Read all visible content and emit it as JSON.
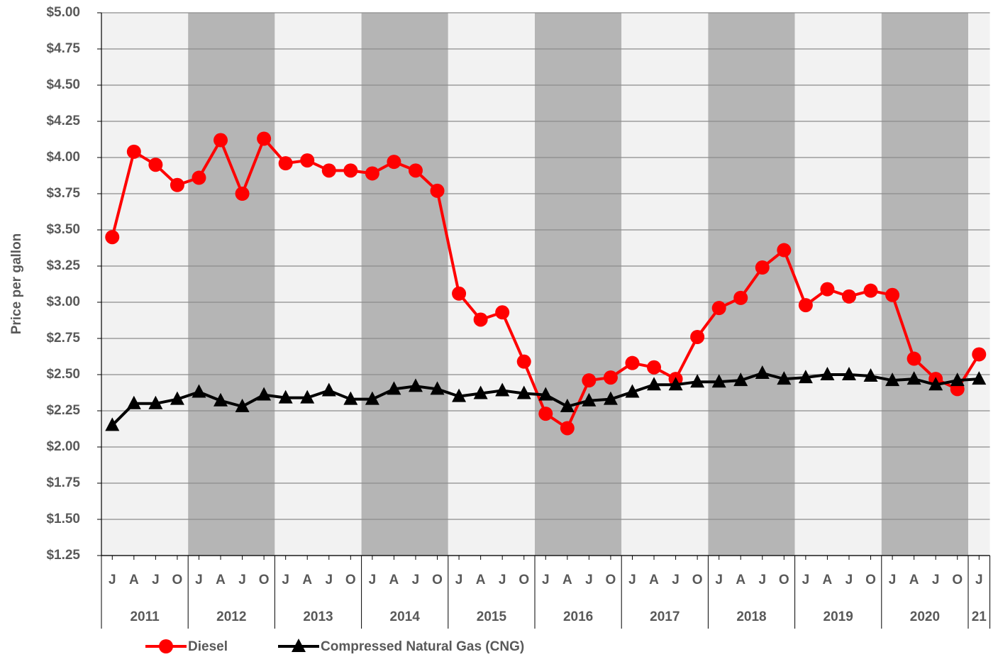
{
  "chart_data": {
    "type": "line",
    "y_label": "Price per gallon",
    "categories": [
      "J",
      "A",
      "J",
      "O",
      "J",
      "A",
      "J",
      "O",
      "J",
      "A",
      "J",
      "O",
      "J",
      "A",
      "J",
      "O",
      "J",
      "A",
      "J",
      "O",
      "J",
      "A",
      "J",
      "O",
      "J",
      "A",
      "J",
      "O",
      "J",
      "A",
      "J",
      "O",
      "J",
      "A",
      "J",
      "O",
      "J",
      "A",
      "J",
      "O",
      "J"
    ],
    "x_groups": [
      "2011",
      "2012",
      "2013",
      "2014",
      "2015",
      "2016",
      "2017",
      "2018",
      "2019",
      "2020",
      "21"
    ],
    "series": [
      {
        "name": "Diesel",
        "color": "#ff0000",
        "marker": "circle",
        "values": [
          3.45,
          4.04,
          3.95,
          3.81,
          3.86,
          4.12,
          3.75,
          4.13,
          3.96,
          3.98,
          3.91,
          3.91,
          3.89,
          3.97,
          3.91,
          3.77,
          3.06,
          2.88,
          2.93,
          2.59,
          2.23,
          2.13,
          2.46,
          2.48,
          2.58,
          2.55,
          2.47,
          2.76,
          2.96,
          3.03,
          3.24,
          3.36,
          2.98,
          3.09,
          3.04,
          3.08,
          3.05,
          2.61,
          2.47,
          2.4,
          2.64
        ]
      },
      {
        "name": "Compressed Natural Gas (CNG)",
        "color": "#000000",
        "marker": "triangle",
        "values": [
          2.15,
          2.3,
          2.3,
          2.33,
          2.38,
          2.32,
          2.28,
          2.36,
          2.34,
          2.34,
          2.39,
          2.33,
          2.33,
          2.4,
          2.42,
          2.4,
          2.35,
          2.37,
          2.39,
          2.37,
          2.36,
          2.28,
          2.32,
          2.33,
          2.38,
          2.43,
          2.43,
          2.45,
          2.45,
          2.46,
          2.51,
          2.47,
          2.48,
          2.5,
          2.5,
          2.49,
          2.46,
          2.47,
          2.43,
          2.46,
          2.47
        ]
      }
    ],
    "ylim": [
      1.25,
      5.0
    ],
    "yticks": [
      {
        "value": 1.25,
        "label": "$1.25"
      },
      {
        "value": 1.5,
        "label": "$1.50"
      },
      {
        "value": 1.75,
        "label": "$1.75"
      },
      {
        "value": 2.0,
        "label": "$2.00"
      },
      {
        "value": 2.25,
        "label": "$2.25"
      },
      {
        "value": 2.5,
        "label": "$2.50"
      },
      {
        "value": 2.75,
        "label": "$2.75"
      },
      {
        "value": 3.0,
        "label": "$3.00"
      },
      {
        "value": 3.25,
        "label": "$3.25"
      },
      {
        "value": 3.5,
        "label": "$3.50"
      },
      {
        "value": 3.75,
        "label": "$3.75"
      },
      {
        "value": 4.0,
        "label": "$4.00"
      },
      {
        "value": 4.25,
        "label": "$4.25"
      },
      {
        "value": 4.5,
        "label": "$4.50"
      },
      {
        "value": 4.75,
        "label": "$4.75"
      },
      {
        "value": 5.0,
        "label": "$5.00"
      }
    ],
    "grid": true
  }
}
